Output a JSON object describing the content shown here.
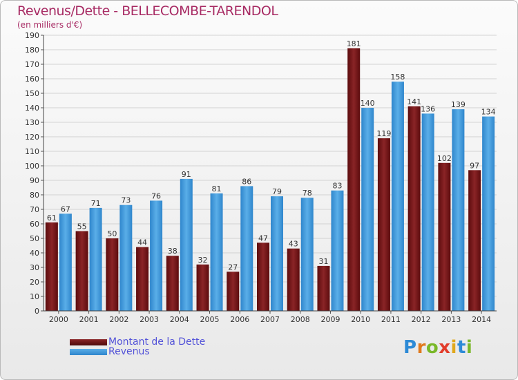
{
  "header": {
    "title": "Revenus/Dette - BELLECOMBE-TARENDOL",
    "subtitle": "(en milliers d'€)"
  },
  "colors": {
    "dette": "#7b1416",
    "revenus": "#3a96dc",
    "title": "#a72a63",
    "legend_text": "#5252d8"
  },
  "legend": [
    {
      "label": "Montant de la Dette",
      "color": "#7b1416"
    },
    {
      "label": "Revenus",
      "color": "#3a96dc"
    }
  ],
  "logo": {
    "letters": [
      "P",
      "r",
      "o",
      "x",
      "i",
      "t",
      "i"
    ],
    "colors": [
      "#2d8ad6",
      "#e0791c",
      "#7ab829",
      "#e23c2a",
      "#e0a81c",
      "#2d8ad6",
      "#7ab829"
    ]
  },
  "chart_data": {
    "type": "bar",
    "title": "Revenus/Dette - BELLECOMBE-TARENDOL",
    "ylabel": "(en milliers d'€)",
    "xlabel": "",
    "ylim": [
      0,
      190
    ],
    "ytick_step": 10,
    "grid": true,
    "legend_position": "bottom-left",
    "categories": [
      "2000",
      "2001",
      "2002",
      "2003",
      "2004",
      "2005",
      "2006",
      "2007",
      "2008",
      "2009",
      "2010",
      "2011",
      "2012",
      "2013",
      "2014"
    ],
    "series": [
      {
        "name": "Montant de la Dette",
        "values": [
          61,
          55,
          50,
          44,
          38,
          32,
          27,
          47,
          43,
          31,
          181,
          119,
          141,
          102,
          97
        ]
      },
      {
        "name": "Revenus",
        "values": [
          67,
          71,
          73,
          76,
          91,
          81,
          86,
          79,
          78,
          83,
          140,
          158,
          136,
          139,
          134
        ]
      }
    ]
  }
}
